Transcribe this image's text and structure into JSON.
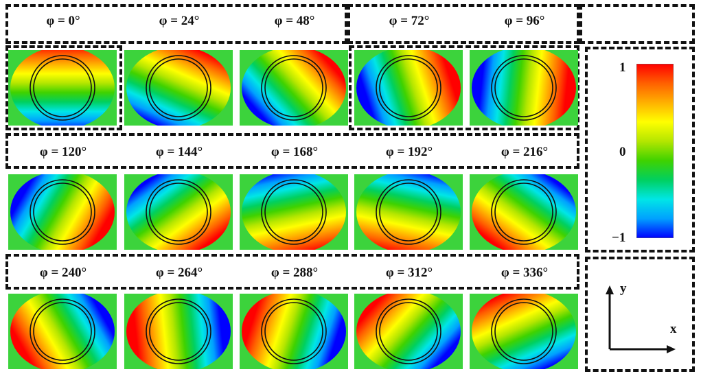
{
  "panels": [
    {
      "label": "φ = 0°",
      "phi": 0
    },
    {
      "label": "φ = 24°",
      "phi": 24
    },
    {
      "label": "φ = 48°",
      "phi": 48
    },
    {
      "label": "φ = 72°",
      "phi": 72
    },
    {
      "label": "φ = 96°",
      "phi": 96
    },
    {
      "label": "φ = 120°",
      "phi": 120
    },
    {
      "label": "φ = 144°",
      "phi": 144
    },
    {
      "label": "φ = 168°",
      "phi": 168
    },
    {
      "label": "φ = 192°",
      "phi": 192
    },
    {
      "label": "φ = 216°",
      "phi": 216
    },
    {
      "label": "φ = 240°",
      "phi": 240
    },
    {
      "label": "φ = 264°",
      "phi": 264
    },
    {
      "label": "φ = 288°",
      "phi": 288
    },
    {
      "label": "φ = 312°",
      "phi": 312
    },
    {
      "label": "φ = 336°",
      "phi": 336
    }
  ],
  "colorbar": {
    "max_label": "1",
    "mid_label": "0",
    "min_label": "−1",
    "colors": [
      "#0000ff",
      "#00a0ff",
      "#00e6e6",
      "#00d060",
      "#3fd200",
      "#b4e600",
      "#ffff00",
      "#ffb000",
      "#ff6000",
      "#ff0000"
    ]
  },
  "axes": {
    "x_label": "x",
    "y_label": "y"
  }
}
